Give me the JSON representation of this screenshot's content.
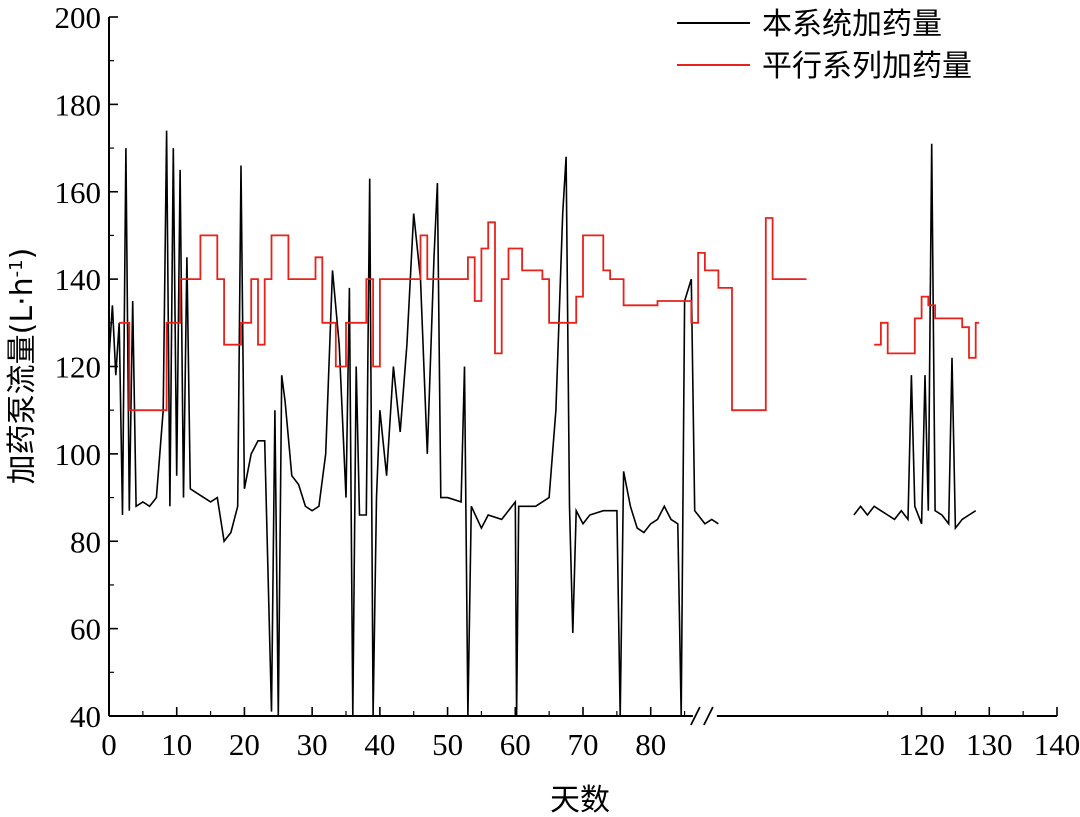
{
  "chart_data": {
    "type": "line",
    "xlabel": "天数",
    "ylabel_main": "加药泵流量(L·h",
    "ylabel_sup": "-1",
    "ylabel_close": ")",
    "xlim": [
      0,
      140
    ],
    "ylim": [
      40,
      200
    ],
    "x_ticks": [
      0,
      10,
      20,
      30,
      40,
      50,
      60,
      70,
      80,
      120,
      130,
      140
    ],
    "y_ticks": [
      40,
      60,
      80,
      100,
      120,
      140,
      160,
      180,
      200
    ],
    "axis_break_marker": "//",
    "axis_break_x": 88,
    "legend_position": "top-right",
    "grid": false,
    "series": [
      {
        "name": "本系统加药量",
        "color": "#000000",
        "segments": [
          [
            [
              0,
              122
            ],
            [
              0.5,
              134
            ],
            [
              1,
              118
            ],
            [
              1.5,
              130
            ],
            [
              2,
              86
            ],
            [
              2.5,
              170
            ],
            [
              3,
              87
            ],
            [
              3.5,
              135
            ],
            [
              4,
              88
            ],
            [
              5,
              89
            ],
            [
              6,
              88
            ],
            [
              7,
              90
            ],
            [
              7.5,
              100
            ],
            [
              8,
              110
            ],
            [
              8.5,
              174
            ],
            [
              9,
              88
            ],
            [
              9.5,
              170
            ],
            [
              10,
              95
            ],
            [
              10.5,
              165
            ],
            [
              11,
              90
            ],
            [
              11.5,
              145
            ],
            [
              12,
              92
            ],
            [
              13,
              91
            ],
            [
              15,
              89
            ],
            [
              16,
              90
            ],
            [
              17,
              80
            ],
            [
              18,
              82
            ],
            [
              19,
              88
            ],
            [
              19.5,
              166
            ],
            [
              20,
              92
            ],
            [
              21,
              100
            ],
            [
              22,
              103
            ],
            [
              23,
              103
            ],
            [
              24,
              41
            ],
            [
              24.5,
              110
            ],
            [
              25,
              40
            ],
            [
              25.5,
              118
            ],
            [
              26,
              112
            ],
            [
              27,
              95
            ],
            [
              28,
              93
            ],
            [
              29,
              88
            ],
            [
              30,
              87
            ],
            [
              31,
              88
            ],
            [
              32,
              100
            ],
            [
              33,
              142
            ],
            [
              34,
              125
            ],
            [
              35,
              90
            ],
            [
              35.5,
              138
            ],
            [
              36,
              40
            ],
            [
              36.5,
              120
            ],
            [
              37,
              86
            ],
            [
              38,
              86
            ],
            [
              38.5,
              163
            ],
            [
              39,
              40
            ],
            [
              39.5,
              90
            ],
            [
              40,
              110
            ],
            [
              41,
              95
            ],
            [
              42,
              120
            ],
            [
              43,
              105
            ],
            [
              44,
              125
            ],
            [
              45,
              155
            ],
            [
              46,
              140
            ],
            [
              47,
              100
            ],
            [
              48,
              145
            ],
            [
              48.5,
              162
            ],
            [
              49,
              90
            ],
            [
              50,
              90
            ],
            [
              52,
              89
            ],
            [
              52.5,
              120
            ],
            [
              53,
              40
            ],
            [
              53.5,
              88
            ],
            [
              55,
              83
            ],
            [
              56,
              86
            ],
            [
              58,
              85
            ],
            [
              60,
              89
            ],
            [
              60.2,
              40
            ],
            [
              60.5,
              88
            ],
            [
              63,
              88
            ],
            [
              65,
              90
            ],
            [
              66,
              110
            ],
            [
              67,
              155
            ],
            [
              67.5,
              168
            ],
            [
              68,
              88
            ],
            [
              68.5,
              59
            ],
            [
              69,
              87
            ],
            [
              70,
              84
            ],
            [
              71,
              86
            ],
            [
              73,
              87
            ],
            [
              75,
              87
            ],
            [
              75.5,
              40
            ],
            [
              76,
              96
            ],
            [
              77,
              88
            ],
            [
              78,
              83
            ],
            [
              79,
              82
            ],
            [
              80,
              84
            ],
            [
              81,
              85
            ],
            [
              82,
              88
            ],
            [
              83,
              85
            ],
            [
              84,
              84
            ],
            [
              84.5,
              40
            ],
            [
              85,
              135
            ],
            [
              86,
              140
            ],
            [
              86.5,
              87
            ],
            [
              87,
              86
            ],
            [
              88,
              84
            ],
            [
              89,
              85
            ],
            [
              90,
              84
            ]
          ],
          [
            [
              110,
              86
            ],
            [
              111,
              88
            ],
            [
              112,
              86
            ],
            [
              113,
              88
            ],
            [
              114,
              87
            ],
            [
              115,
              86
            ],
            [
              116,
              85
            ],
            [
              117,
              87
            ],
            [
              118,
              85
            ],
            [
              118.5,
              118
            ],
            [
              119,
              88
            ],
            [
              120,
              84
            ],
            [
              120.5,
              118
            ],
            [
              121,
              87
            ],
            [
              121.5,
              171
            ],
            [
              122,
              87
            ],
            [
              123,
              86
            ],
            [
              124,
              84
            ],
            [
              124.5,
              122
            ],
            [
              125,
              83
            ],
            [
              126,
              85
            ],
            [
              127,
              86
            ],
            [
              128,
              87
            ]
          ]
        ]
      },
      {
        "name": "平行系列加药量",
        "color": "#e8221b",
        "segments": [
          [
            [
              1.5,
              130
            ],
            [
              3,
              130
            ],
            [
              3,
              110
            ],
            [
              8.5,
              110
            ],
            [
              8.5,
              130
            ],
            [
              10.5,
              130
            ],
            [
              10.5,
              140
            ],
            [
              13.5,
              140
            ],
            [
              13.5,
              150
            ],
            [
              16,
              150
            ],
            [
              16,
              140
            ],
            [
              17,
              140
            ],
            [
              17,
              125
            ],
            [
              19.5,
              125
            ],
            [
              19.5,
              130
            ],
            [
              21,
              130
            ],
            [
              21,
              140
            ],
            [
              22,
              140
            ],
            [
              22,
              125
            ],
            [
              23,
              125
            ],
            [
              23,
              140
            ],
            [
              24,
              140
            ],
            [
              24,
              150
            ],
            [
              26.5,
              150
            ],
            [
              26.5,
              140
            ],
            [
              30.5,
              140
            ],
            [
              30.5,
              145
            ],
            [
              31.5,
              145
            ],
            [
              31.5,
              130
            ],
            [
              33.5,
              130
            ],
            [
              33.5,
              120
            ],
            [
              35,
              120
            ],
            [
              35,
              130
            ],
            [
              38,
              130
            ],
            [
              38,
              140
            ],
            [
              39,
              140
            ],
            [
              39,
              120
            ],
            [
              40,
              120
            ],
            [
              40,
              140
            ],
            [
              46,
              140
            ],
            [
              46,
              150
            ],
            [
              47,
              150
            ],
            [
              47,
              140
            ],
            [
              53,
              140
            ],
            [
              53,
              145
            ],
            [
              54,
              145
            ],
            [
              54,
              135
            ],
            [
              55,
              135
            ],
            [
              55,
              147
            ],
            [
              56,
              147
            ],
            [
              56,
              153
            ],
            [
              57,
              153
            ],
            [
              57,
              123
            ],
            [
              58,
              123
            ],
            [
              58,
              140
            ],
            [
              59,
              140
            ],
            [
              59,
              147
            ],
            [
              61,
              147
            ],
            [
              61,
              142
            ],
            [
              64,
              142
            ],
            [
              64,
              140
            ],
            [
              65,
              140
            ],
            [
              65,
              130
            ],
            [
              69,
              130
            ],
            [
              69,
              136
            ],
            [
              70,
              136
            ],
            [
              70,
              150
            ],
            [
              73,
              150
            ],
            [
              73,
              142
            ],
            [
              74,
              142
            ],
            [
              74,
              140
            ],
            [
              76,
              140
            ],
            [
              76,
              134
            ],
            [
              81,
              134
            ],
            [
              81,
              135
            ],
            [
              86,
              135
            ],
            [
              86,
              130
            ],
            [
              87,
              130
            ],
            [
              87,
              146
            ],
            [
              88,
              146
            ],
            [
              88,
              142
            ],
            [
              90,
              142
            ],
            [
              90,
              138
            ],
            [
              92,
              138
            ],
            [
              92,
              110
            ],
            [
              97,
              110
            ],
            [
              97,
              154
            ],
            [
              98,
              154
            ],
            [
              98,
              140
            ],
            [
              103,
              140
            ]
          ],
          [
            [
              113,
              125
            ],
            [
              114,
              125
            ],
            [
              114,
              130
            ],
            [
              115,
              130
            ],
            [
              115,
              123
            ],
            [
              119,
              123
            ],
            [
              119,
              131
            ],
            [
              120,
              131
            ],
            [
              120,
              136
            ],
            [
              121,
              136
            ],
            [
              121,
              134
            ],
            [
              122,
              134
            ],
            [
              122,
              131
            ],
            [
              126,
              131
            ],
            [
              126,
              129
            ],
            [
              127,
              129
            ],
            [
              127,
              122
            ],
            [
              128,
              122
            ],
            [
              128,
              130
            ],
            [
              128.5,
              130
            ]
          ]
        ]
      }
    ]
  }
}
